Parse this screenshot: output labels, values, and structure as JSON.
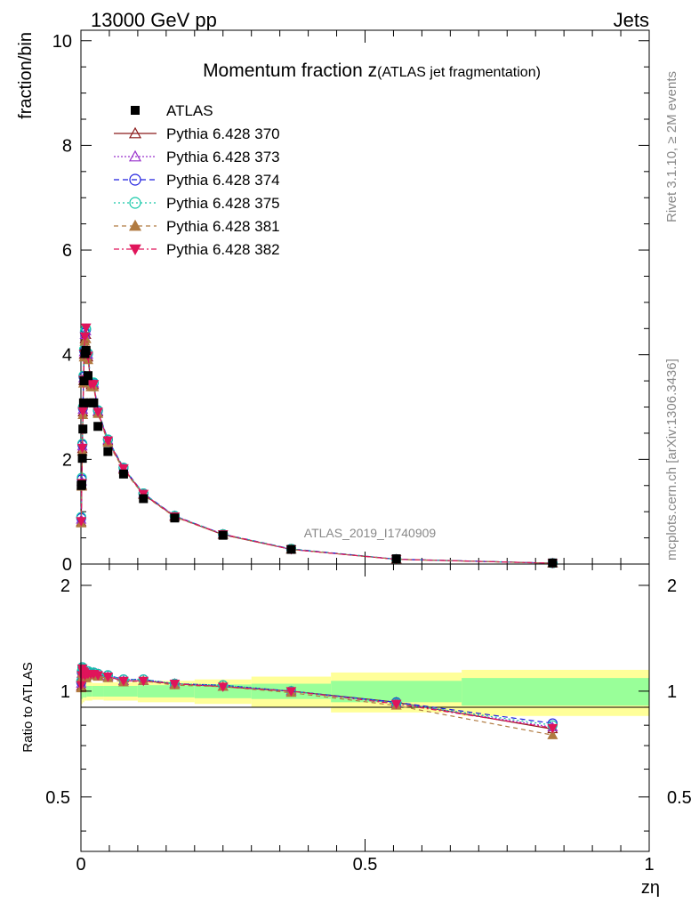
{
  "header": {
    "left": "13000 GeV pp",
    "right": "Jets"
  },
  "side": {
    "rivet": "Rivet 3.1.10, ≥ 2M events",
    "mcplots": "mcplots.cern.ch [arXiv:1306.3436]"
  },
  "chart_data": [
    {
      "type": "line",
      "panel": "main",
      "title": "Momentum fraction z",
      "title_suffix": "(ATLAS jet fragmentation)",
      "watermark": "ATLAS_2019_I1740909",
      "ylabel": "fraction/bin",
      "xlim": [
        0,
        1
      ],
      "ylim": [
        0,
        10.2
      ],
      "yticks": [
        "0",
        "2",
        "4",
        "6",
        "8",
        "10"
      ],
      "legend_position": "top-left",
      "x": [
        0.0005,
        0.0015,
        0.0025,
        0.0035,
        0.0045,
        0.0055,
        0.007,
        0.009,
        0.0125,
        0.0175,
        0.0225,
        0.03,
        0.0475,
        0.075,
        0.11,
        0.165,
        0.25,
        0.37,
        0.555,
        0.83
      ],
      "atlas": {
        "name": "ATLAS",
        "color": "#000000",
        "values": [
          1.5,
          1.52,
          2.02,
          2.58,
          3.08,
          3.5,
          4.02,
          4.08,
          3.6,
          3.08,
          3.08,
          2.63,
          2.15,
          1.72,
          1.25,
          0.88,
          0.55,
          0.28,
          0.1,
          0.02
        ]
      },
      "series": [
        {
          "name": "Pythia 6.428 370",
          "color": "#8b1a1a",
          "marker": "triangle-open",
          "dash": "",
          "values": [
            0.8,
            1.5,
            2.2,
            2.9,
            3.5,
            4.0,
            4.3,
            4.38,
            3.95,
            3.42,
            3.42,
            2.9,
            2.35,
            1.82,
            1.33,
            0.91,
            0.56,
            0.28,
            0.09,
            0.016
          ]
        },
        {
          "name": "Pythia 6.428 373",
          "color": "#9932cc",
          "marker": "triangle-open",
          "dash": "2,2",
          "values": [
            0.85,
            1.58,
            2.25,
            2.95,
            3.55,
            4.05,
            4.38,
            4.45,
            4.0,
            3.45,
            3.45,
            2.92,
            2.37,
            1.83,
            1.34,
            0.92,
            0.57,
            0.28,
            0.092,
            0.0165
          ]
        },
        {
          "name": "Pythia 6.428 374",
          "color": "#1f1fdf",
          "marker": "circle-open",
          "dash": "6,4",
          "values": [
            0.88,
            1.62,
            2.28,
            2.98,
            3.58,
            4.08,
            4.42,
            4.48,
            4.02,
            3.46,
            3.46,
            2.93,
            2.38,
            1.84,
            1.35,
            0.92,
            0.57,
            0.29,
            0.093,
            0.0165
          ]
        },
        {
          "name": "Pythia 6.428 375",
          "color": "#14c8a8",
          "marker": "circle-open",
          "dash": "2,3",
          "values": [
            0.9,
            1.65,
            2.3,
            3.0,
            3.6,
            4.1,
            4.45,
            4.5,
            4.03,
            3.47,
            3.47,
            2.94,
            2.38,
            1.84,
            1.35,
            0.92,
            0.57,
            0.29,
            0.092,
            0.016
          ]
        },
        {
          "name": "Pythia 6.428 381",
          "color": "#b07a40",
          "marker": "triangle-filled",
          "dash": "5,4",
          "values": [
            0.78,
            1.48,
            2.15,
            2.85,
            3.45,
            3.95,
            4.25,
            4.3,
            3.9,
            3.38,
            3.38,
            2.87,
            2.32,
            1.8,
            1.32,
            0.9,
            0.56,
            0.28,
            0.09,
            0.015
          ]
        },
        {
          "name": "Pythia 6.428 382",
          "color": "#e0145a",
          "marker": "triangle-down-filled",
          "dash": "6,3,2,3",
          "values": [
            0.82,
            1.55,
            2.22,
            2.92,
            3.52,
            4.02,
            4.35,
            4.52,
            3.98,
            3.44,
            3.44,
            2.91,
            2.36,
            1.83,
            1.34,
            0.91,
            0.57,
            0.28,
            0.091,
            0.0158
          ]
        }
      ]
    },
    {
      "type": "line",
      "panel": "ratio",
      "ylabel": "Ratio to ATLAS",
      "xlabel": "zη",
      "xlim": [
        0,
        1
      ],
      "ylim": [
        0.35,
        2.3
      ],
      "yticks": [
        "0.5",
        "1",
        "2"
      ],
      "xticks": [
        "0",
        "0.5",
        "1"
      ],
      "band_edges": [
        0,
        0.001,
        0.003,
        0.006,
        0.01,
        0.02,
        0.04,
        0.1,
        0.2,
        0.3,
        0.44,
        0.67,
        1.0
      ],
      "band_inner": [
        [
          0.94,
          1.06
        ],
        [
          0.95,
          1.05
        ],
        [
          0.96,
          1.04
        ],
        [
          0.96,
          1.04
        ],
        [
          0.965,
          1.035
        ],
        [
          0.965,
          1.035
        ],
        [
          0.965,
          1.035
        ],
        [
          0.96,
          1.04
        ],
        [
          0.955,
          1.045
        ],
        [
          0.95,
          1.05
        ],
        [
          0.93,
          1.07
        ],
        [
          0.91,
          1.09
        ]
      ],
      "band_outer": [
        [
          0.9,
          1.1
        ],
        [
          0.92,
          1.08
        ],
        [
          0.93,
          1.07
        ],
        [
          0.94,
          1.06
        ],
        [
          0.94,
          1.06
        ],
        [
          0.945,
          1.055
        ],
        [
          0.94,
          1.06
        ],
        [
          0.93,
          1.07
        ],
        [
          0.92,
          1.08
        ],
        [
          0.9,
          1.1
        ],
        [
          0.87,
          1.13
        ],
        [
          0.85,
          1.15
        ]
      ],
      "series": [
        {
          "name": "Pythia 6.428 370",
          "color": "#8b1a1a",
          "marker": "triangle-open",
          "dash": "",
          "values": [
            1.03,
            1.1,
            1.15,
            1.13,
            1.12,
            1.12,
            1.1,
            1.1,
            1.12,
            1.12,
            1.12,
            1.11,
            1.1,
            1.07,
            1.07,
            1.05,
            1.03,
            1.0,
            0.93,
            0.78
          ]
        },
        {
          "name": "Pythia 6.428 373",
          "color": "#9932cc",
          "marker": "triangle-open",
          "dash": "2,2",
          "values": [
            1.05,
            1.12,
            1.16,
            1.14,
            1.13,
            1.13,
            1.11,
            1.11,
            1.13,
            1.13,
            1.13,
            1.12,
            1.1,
            1.07,
            1.07,
            1.05,
            1.03,
            1.0,
            0.925,
            0.79
          ]
        },
        {
          "name": "Pythia 6.428 374",
          "color": "#1f1fdf",
          "marker": "circle-open",
          "dash": "6,4",
          "values": [
            1.06,
            1.13,
            1.17,
            1.15,
            1.14,
            1.14,
            1.12,
            1.12,
            1.14,
            1.13,
            1.13,
            1.12,
            1.11,
            1.08,
            1.08,
            1.05,
            1.04,
            1.0,
            0.93,
            0.81
          ]
        },
        {
          "name": "Pythia 6.428 375",
          "color": "#14c8a8",
          "marker": "circle-open",
          "dash": "2,3",
          "values": [
            1.07,
            1.14,
            1.17,
            1.16,
            1.15,
            1.14,
            1.12,
            1.12,
            1.14,
            1.13,
            1.13,
            1.12,
            1.11,
            1.08,
            1.08,
            1.05,
            1.04,
            1.0,
            0.925,
            0.8
          ]
        },
        {
          "name": "Pythia 6.428 381",
          "color": "#b07a40",
          "marker": "triangle-filled",
          "dash": "5,4",
          "values": [
            1.02,
            1.09,
            1.13,
            1.12,
            1.11,
            1.11,
            1.09,
            1.09,
            1.11,
            1.11,
            1.11,
            1.1,
            1.09,
            1.06,
            1.07,
            1.04,
            1.03,
            0.99,
            0.91,
            0.75
          ]
        },
        {
          "name": "Pythia 6.428 382",
          "color": "#e0145a",
          "marker": "triangle-down-filled",
          "dash": "6,3,2,3",
          "values": [
            1.04,
            1.11,
            1.16,
            1.14,
            1.13,
            1.13,
            1.11,
            1.12,
            1.12,
            1.12,
            1.12,
            1.11,
            1.1,
            1.07,
            1.07,
            1.05,
            1.03,
            1.0,
            0.92,
            0.785
          ]
        }
      ]
    }
  ]
}
